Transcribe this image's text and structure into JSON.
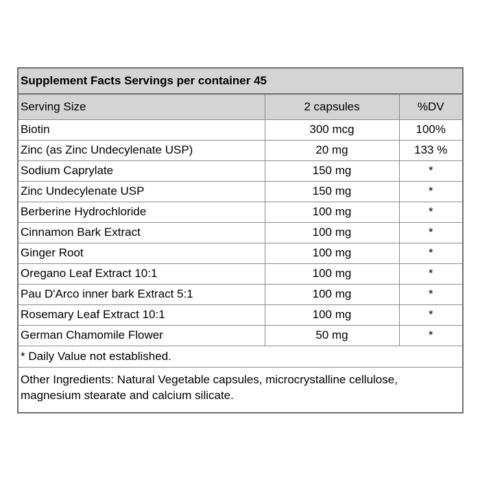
{
  "title": "Supplement Facts Servings per container 45",
  "header": {
    "name": "Serving Size",
    "amount": "2 capsules",
    "dv": "%DV"
  },
  "rows": [
    {
      "name": "Biotin",
      "amount": "300 mcg",
      "dv": "100%"
    },
    {
      "name": "Zinc (as Zinc Undecylenate USP)",
      "amount": "20 mg",
      "dv": "133 %"
    },
    {
      "name": "Sodium Caprylate",
      "amount": "150 mg",
      "dv": "*"
    },
    {
      "name": "Zinc Undecylenate USP",
      "amount": "150 mg",
      "dv": "*"
    },
    {
      "name": "Berberine Hydrochloride",
      "amount": "100 mg",
      "dv": "*"
    },
    {
      "name": "Cinnamon Bark Extract",
      "amount": "100 mg",
      "dv": "*"
    },
    {
      "name": "Ginger Root",
      "amount": "100 mg",
      "dv": "*"
    },
    {
      "name": "Oregano Leaf Extract 10:1",
      "amount": "100 mg",
      "dv": "*"
    },
    {
      "name": "Pau D'Arco inner bark Extract 5:1",
      "amount": "100 mg",
      "dv": "*"
    },
    {
      "name": "Rosemary Leaf Extract 10:1",
      "amount": "100 mg",
      "dv": "*"
    },
    {
      "name": "German Chamomile Flower",
      "amount": "50 mg",
      "dv": "*"
    }
  ],
  "footnote": "* Daily Value not established.",
  "other_ingredients_line1": "Other Ingredients: Natural Vegetable capsules, microcrystalline cellulose,",
  "other_ingredients_line2": "magnesium stearate and calcium silicate.",
  "colors": {
    "header_bg": "#d4d4d4",
    "border": "#6f6f6f"
  }
}
